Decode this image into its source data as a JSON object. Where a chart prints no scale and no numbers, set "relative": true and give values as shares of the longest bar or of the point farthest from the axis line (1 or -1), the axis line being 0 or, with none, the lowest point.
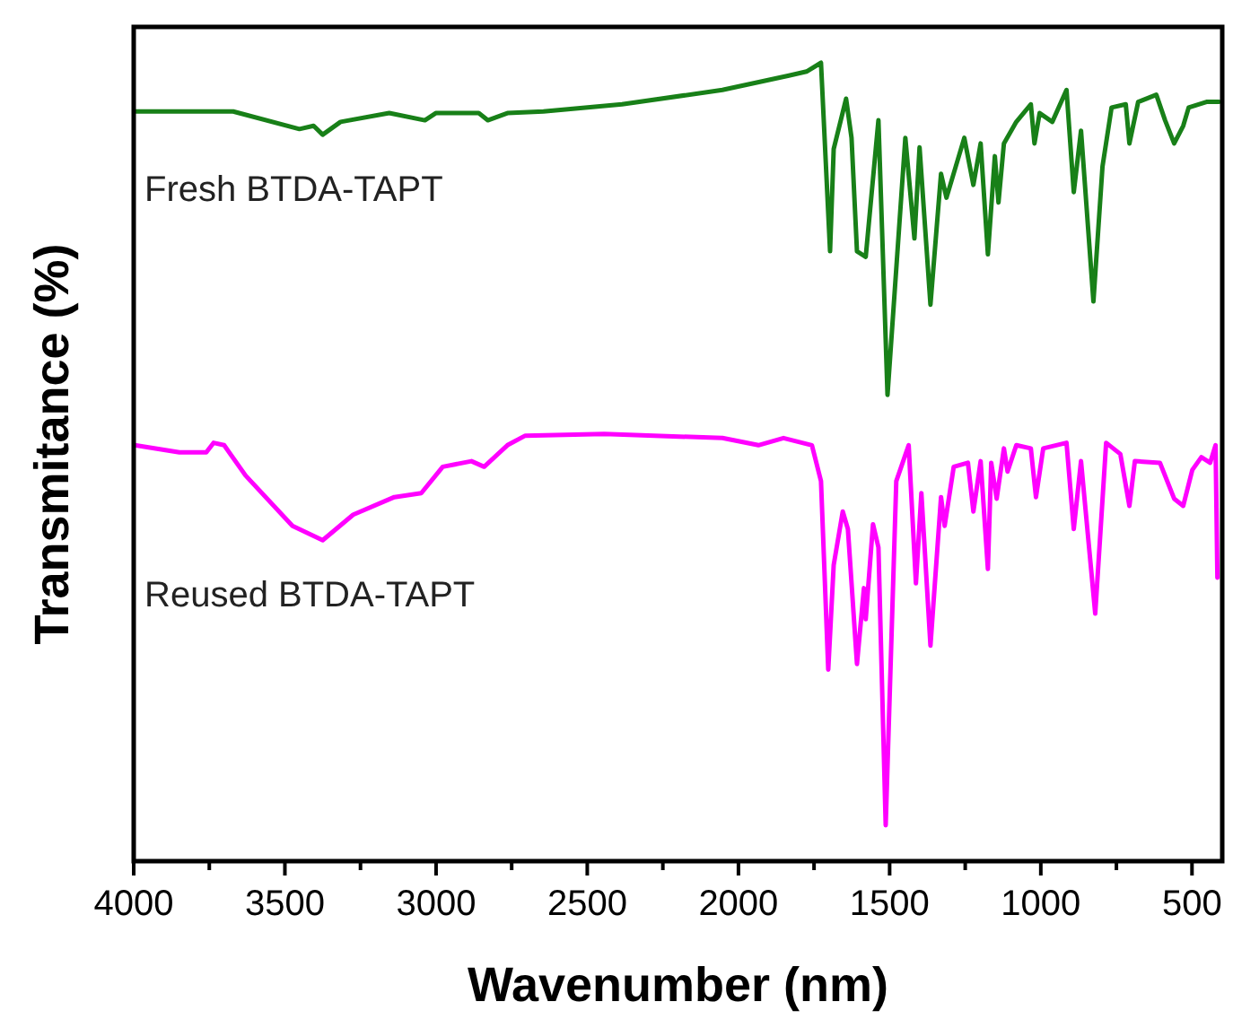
{
  "chart_data": {
    "type": "line",
    "relative": true,
    "xlabel": "Wavenumber (nm)",
    "ylabel": "Transmitance (%)",
    "xlim": [
      4000,
      400
    ],
    "xticks": [
      4000,
      {
        "value": 3750,
        "label": null
      },
      3500,
      {
        "value": 3250,
        "label": null
      },
      3000,
      {
        "value": 2750,
        "label": null
      },
      2500,
      {
        "value": 2250,
        "label": null
      },
      2000,
      {
        "value": 1750,
        "label": null
      },
      1500,
      {
        "value": 1250,
        "label": null
      },
      1000,
      {
        "value": 750,
        "label": null
      },
      500
    ],
    "tick_labels": "x",
    "grid": false,
    "line_style": "solid",
    "series": [
      {
        "name": "Fresh BTDA-TAPT",
        "color": "#188018",
        "x": [
          3997,
          3671,
          3452,
          3405,
          3375,
          3316,
          3155,
          3037,
          3001,
          2859,
          2829,
          2764,
          2645,
          2385,
          2053,
          1833,
          1775,
          1727,
          1697,
          1685,
          1644,
          1626,
          1608,
          1579,
          1537,
          1507,
          1448,
          1418,
          1401,
          1365,
          1330,
          1312,
          1253,
          1223,
          1199,
          1175,
          1152,
          1140,
          1122,
          1081,
          1033,
          1021,
          1004,
          962,
          915,
          891,
          867,
          826,
          796,
          766,
          719,
          707,
          678,
          618,
          589,
          559,
          529,
          511,
          452,
          411
        ],
        "values": [
          0.939,
          0.939,
          0.917,
          0.921,
          0.91,
          0.926,
          0.937,
          0.928,
          0.937,
          0.937,
          0.928,
          0.937,
          0.939,
          0.948,
          0.966,
          0.984,
          0.989,
          1,
          0.764,
          0.892,
          0.955,
          0.906,
          0.764,
          0.757,
          0.928,
          0.584,
          0.906,
          0.78,
          0.894,
          0.697,
          0.861,
          0.831,
          0.906,
          0.847,
          0.899,
          0.76,
          0.883,
          0.825,
          0.899,
          0.926,
          0.948,
          0.899,
          0.937,
          0.926,
          0.966,
          0.838,
          0.915,
          0.701,
          0.87,
          0.944,
          0.948,
          0.899,
          0.951,
          0.96,
          0.928,
          0.899,
          0.921,
          0.944,
          0.951,
          0.951
        ]
      },
      {
        "name": "Reused BTDA-TAPT",
        "color": "#ff00ff",
        "x": [
          3997,
          3849,
          3760,
          3736,
          3701,
          3630,
          3475,
          3375,
          3274,
          3138,
          3049,
          2978,
          2883,
          2841,
          2764,
          2705,
          2444,
          2053,
          1934,
          1851,
          1757,
          1727,
          1703,
          1685,
          1655,
          1638,
          1608,
          1585,
          1579,
          1555,
          1537,
          1513,
          1478,
          1437,
          1413,
          1395,
          1365,
          1330,
          1318,
          1288,
          1241,
          1223,
          1199,
          1175,
          1164,
          1146,
          1122,
          1110,
          1081,
          1033,
          1016,
          992,
          915,
          891,
          867,
          820,
          784,
          737,
          707,
          689,
          606,
          559,
          529,
          499,
          469,
          440,
          422,
          416
        ],
        "values": [
          0.521,
          0.512,
          0.512,
          0.524,
          0.521,
          0.483,
          0.42,
          0.402,
          0.434,
          0.456,
          0.461,
          0.494,
          0.501,
          0.494,
          0.521,
          0.533,
          0.535,
          0.53,
          0.521,
          0.53,
          0.521,
          0.476,
          0.24,
          0.371,
          0.438,
          0.416,
          0.247,
          0.342,
          0.303,
          0.422,
          0.393,
          0.045,
          0.476,
          0.521,
          0.348,
          0.461,
          0.27,
          0.456,
          0.42,
          0.494,
          0.499,
          0.438,
          0.501,
          0.366,
          0.499,
          0.454,
          0.517,
          0.488,
          0.521,
          0.517,
          0.456,
          0.517,
          0.524,
          0.416,
          0.501,
          0.31,
          0.524,
          0.51,
          0.445,
          0.501,
          0.499,
          0.454,
          0.445,
          0.49,
          0.506,
          0.499,
          0.521,
          0.355
        ]
      }
    ]
  }
}
